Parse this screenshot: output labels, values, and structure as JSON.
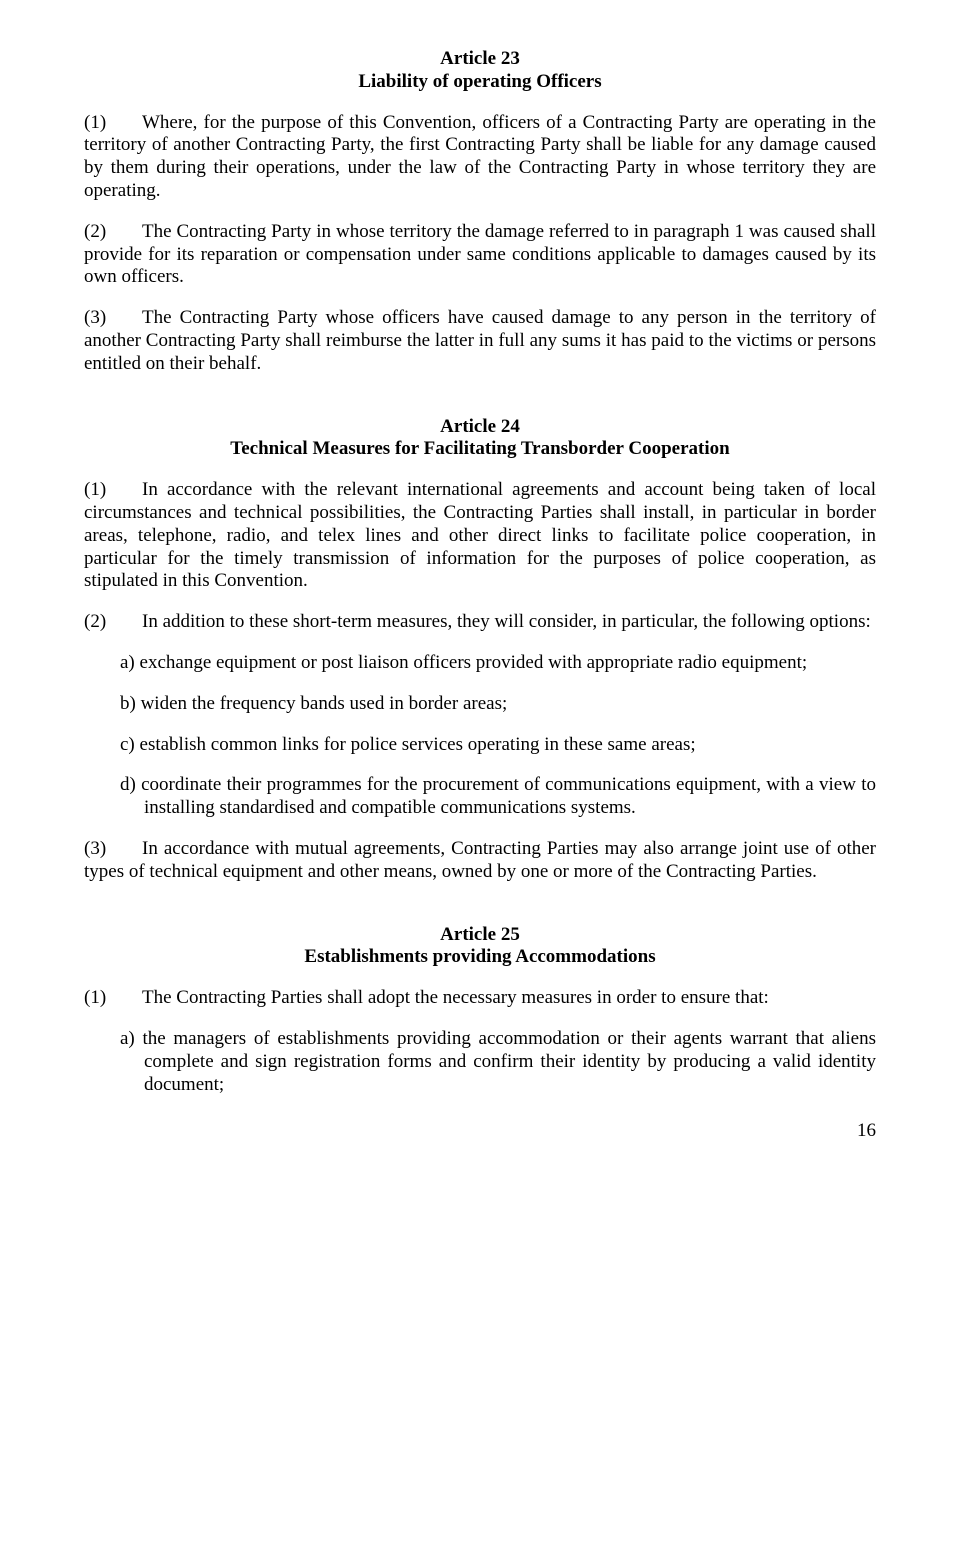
{
  "article23": {
    "number": "Article 23",
    "title": "Liability of operating Officers",
    "p1_num": "(1)",
    "p1": "Where, for the purpose of this Convention, officers of a Contracting Party are operating in the territory of another Contracting Party, the first Contracting Party shall be liable for any damage caused by them during their operations, under the law of the Contracting Party in whose territory they are operating.",
    "p2_num": "(2)",
    "p2": "The Contracting Party in whose territory the damage referred to in paragraph 1 was caused shall provide for its reparation or compensation under same conditions applicable to damages caused by its own officers.",
    "p3_num": "(3)",
    "p3": "The Contracting Party whose officers have caused damage to any person in the territory of another Contracting Party shall reimburse the latter in full any sums it has paid to the victims or persons entitled on their behalf."
  },
  "article24": {
    "number": "Article 24",
    "title": "Technical Measures for Facilitating Transborder Cooperation",
    "p1_num": "(1)",
    "p1": "In accordance with the relevant international agreements and account being taken of local circumstances and technical possibilities, the Contracting Parties shall install, in particular in border areas, telephone, radio, and telex lines and other direct links to facilitate police cooperation, in particular for the timely transmission of information for the purposes of police cooperation, as stipulated in this Convention.",
    "p2_num": "(2)",
    "p2": "In addition to these short-term measures, they will consider, in particular, the following options:",
    "items": {
      "a_l": "a)",
      "a": "exchange equipment or post liaison officers provided with appropriate radio equipment;",
      "b_l": "b)",
      "b": "widen the frequency bands used in border areas;",
      "c_l": "c)",
      "c": "establish common links for police services operating in these same areas;",
      "d_l": "d)",
      "d": "coordinate their programmes for the procurement of communications equipment, with a view to installing standardised and compatible communications systems."
    },
    "p3_num": "(3)",
    "p3": "In accordance with mutual agreements, Contracting Parties may also arrange joint use of other types of technical equipment and other means, owned by one or more of the Contracting Parties."
  },
  "article25": {
    "number": "Article 25",
    "title": "Establishments providing Accommodations",
    "p1_num": "(1)",
    "p1": "The Contracting Parties shall adopt the necessary measures in order to ensure that:",
    "items": {
      "a_l": "a)",
      "a": "the managers of establishments providing accommodation or their agents warrant that aliens complete and sign registration forms and confirm their identity by producing a valid identity document;"
    }
  },
  "page_number": "16"
}
